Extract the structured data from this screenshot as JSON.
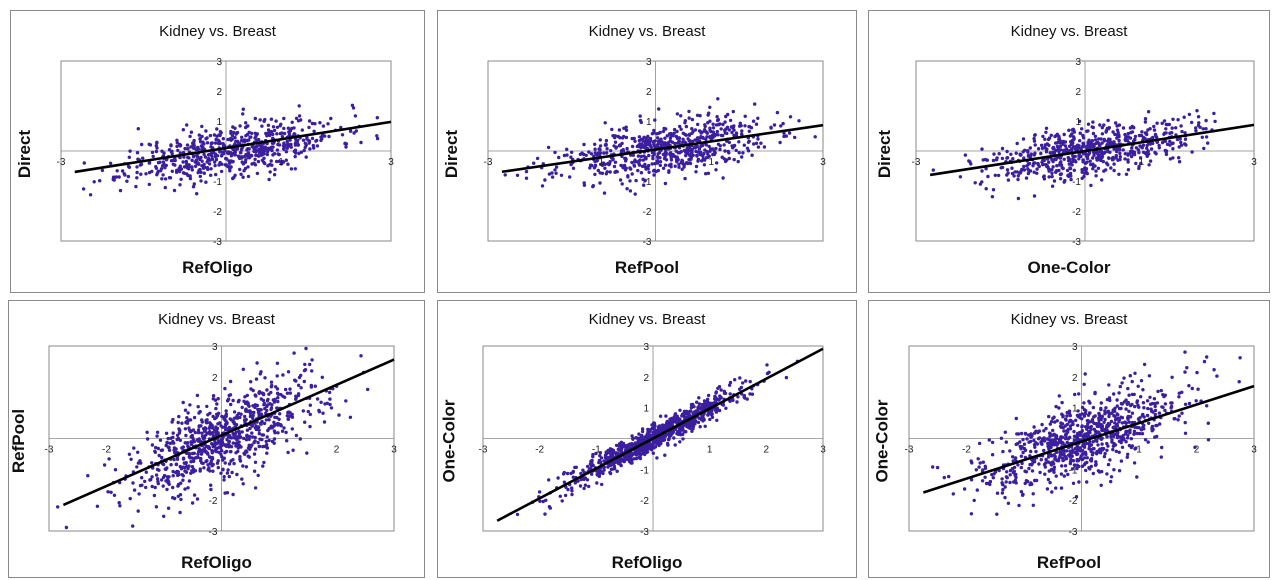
{
  "colors": {
    "points": "#3b1f9e",
    "fit_line": "#000000",
    "frame": "#8a8a8a",
    "axes": "#888888"
  },
  "chart_data": [
    {
      "type": "scatter",
      "title": "Kidney vs. Breast",
      "xlabel": "RefOligo",
      "ylabel": "Direct",
      "xlim": [
        -3,
        3
      ],
      "ylim": [
        -3,
        3
      ],
      "x_ticks": [
        "-3",
        "1",
        "3"
      ],
      "y_ticks": [
        "3",
        "2",
        "1",
        "-1",
        "-2",
        "-3"
      ],
      "fit_line": {
        "slope": 0.29,
        "intercept": 0.1
      },
      "point_spread": {
        "slope": 0.3,
        "noise": 0.42,
        "xspread": 0.95,
        "xcenter": 0.1
      },
      "n_points": 650,
      "seed": 11
    },
    {
      "type": "scatter",
      "title": "Kidney vs. Breast",
      "xlabel": "RefPool",
      "ylabel": "Direct",
      "xlim": [
        -3,
        3
      ],
      "ylim": [
        -3,
        3
      ],
      "x_ticks": [
        "-3",
        "-1",
        "1",
        "3"
      ],
      "y_ticks": [
        "3",
        "2",
        "1",
        "-1",
        "-2",
        "-3"
      ],
      "fit_line": {
        "slope": 0.27,
        "intercept": 0.05
      },
      "point_spread": {
        "slope": 0.28,
        "noise": 0.45,
        "xspread": 0.95,
        "xcenter": 0.1
      },
      "n_points": 650,
      "seed": 23
    },
    {
      "type": "scatter",
      "title": "Kidney vs. Breast",
      "xlabel": "One-Color",
      "ylabel": "Direct",
      "xlim": [
        -3,
        3
      ],
      "ylim": [
        -3,
        3
      ],
      "x_ticks": [
        "-3",
        "1",
        "3"
      ],
      "y_ticks": [
        "3",
        "2",
        "1",
        "-1",
        "-2",
        "-3"
      ],
      "fit_line": {
        "slope": 0.29,
        "intercept": 0.0
      },
      "point_spread": {
        "slope": 0.3,
        "noise": 0.42,
        "xspread": 0.9,
        "xcenter": 0.1
      },
      "n_points": 650,
      "seed": 37
    },
    {
      "type": "scatter",
      "title": "Kidney vs. Breast",
      "xlabel": "RefOligo",
      "ylabel": "RefPool",
      "xlim": [
        -3,
        3
      ],
      "ylim": [
        -3,
        3
      ],
      "x_ticks": [
        "-3",
        "-2",
        "2",
        "3"
      ],
      "y_ticks": [
        "3",
        "2",
        "-2",
        "-3"
      ],
      "fit_line": {
        "slope": 0.82,
        "intercept": 0.1
      },
      "point_spread": {
        "slope": 0.85,
        "noise": 0.7,
        "xspread": 0.85,
        "xcenter": 0.1
      },
      "n_points": 850,
      "seed": 53
    },
    {
      "type": "scatter",
      "title": "Kidney vs. Breast",
      "xlabel": "RefOligo",
      "ylabel": "One-Color",
      "xlim": [
        -3,
        3
      ],
      "ylim": [
        -3,
        3
      ],
      "x_ticks": [
        "-3",
        "-2",
        "-1",
        "1",
        "2",
        "3"
      ],
      "y_ticks": [
        "3",
        "2",
        "1",
        "-1",
        "-2",
        "-3"
      ],
      "fit_line": {
        "slope": 0.97,
        "intercept": 0.0
      },
      "point_spread": {
        "slope": 0.98,
        "noise": 0.22,
        "xspread": 0.75,
        "xcenter": 0.0
      },
      "n_points": 950,
      "seed": 71
    },
    {
      "type": "scatter",
      "title": "Kidney vs. Breast",
      "xlabel": "RefPool",
      "ylabel": "One-Color",
      "xlim": [
        -3,
        3
      ],
      "ylim": [
        -3,
        3
      ],
      "x_ticks": [
        "-3",
        "-2",
        "1",
        "2",
        "3"
      ],
      "y_ticks": [
        "3",
        "2",
        "1",
        "-1",
        "-2",
        "-3"
      ],
      "fit_line": {
        "slope": 0.6,
        "intercept": -0.1
      },
      "point_spread": {
        "slope": 0.65,
        "noise": 0.62,
        "xspread": 0.9,
        "xcenter": 0.0
      },
      "n_points": 850,
      "seed": 97
    }
  ]
}
